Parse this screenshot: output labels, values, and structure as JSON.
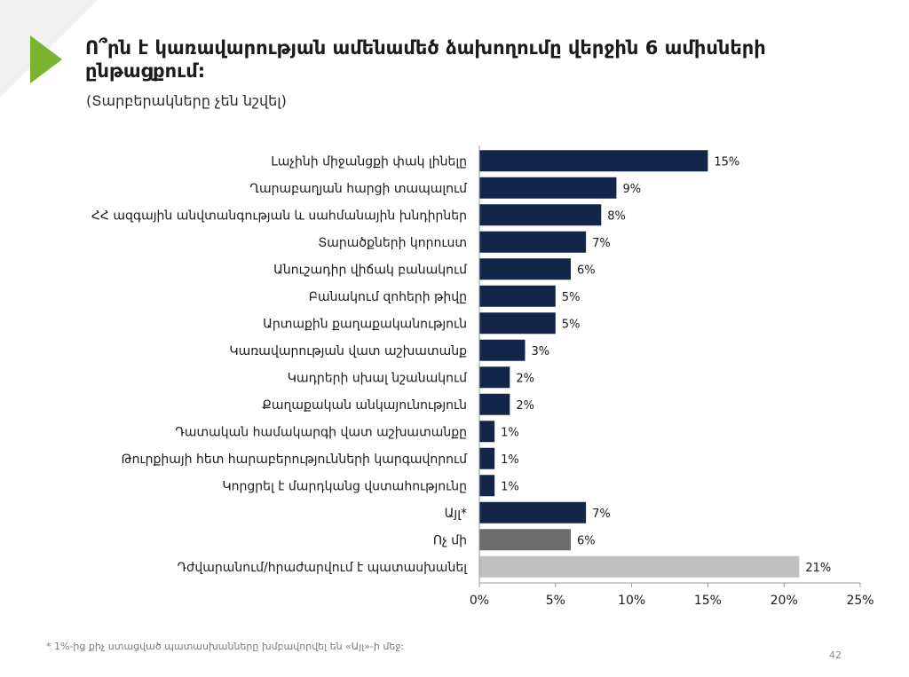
{
  "slide": {
    "title": "Ո՞րն է կառավարության ամենամեծ ձախողումը վերջին 6 ամիսների ընթացքում:",
    "subtitle": "(Տարբերակները չեն նշվել)",
    "footnote": "* 1%-ից քիչ ստացված պատասխանները խմբավորվել են «Այլ»-ի մեջ:",
    "page_number": "42",
    "colors": {
      "accent_arrow": "#7ab32e",
      "corner": "#f1f1f1"
    }
  },
  "chart_data": {
    "type": "bar",
    "orientation": "horizontal",
    "categories": [
      "Լաչինի միջանցքի փակ լինելը",
      "Ղարաբաղյան հարցի տապալում",
      "ՀՀ ազգային անվտանգության և սահմանային խնդիրներ",
      "Տարածքների կորուստ",
      "Անուշադիր վիճակ բանակում",
      "Բանակում զոհերի թիվը",
      "Արտաքին քաղաքականություն",
      "Կառավարության վատ աշխատանք",
      "Կադրերի սխալ նշանակում",
      "Քաղաքական անկայունություն",
      "Դատական համակարգի վատ աշխատանքը",
      "Թուրքիայի հետ հարաբերությունների կարգավորում",
      "Կորցրել է մարդկանց վստահությունը",
      "Այլ*",
      "Ոչ մի",
      "Դժվարանում/հրաժարվում է պատասխանել"
    ],
    "values": [
      15,
      9,
      8,
      7,
      6,
      5,
      5,
      3,
      2,
      2,
      1,
      1,
      1,
      7,
      6,
      21
    ],
    "value_labels": [
      "15%",
      "9%",
      "8%",
      "7%",
      "6%",
      "5%",
      "5%",
      "3%",
      "2%",
      "2%",
      "1%",
      "1%",
      "1%",
      "7%",
      "6%",
      "21%"
    ],
    "bar_colors": [
      "#13264a",
      "#13264a",
      "#13264a",
      "#13264a",
      "#13264a",
      "#13264a",
      "#13264a",
      "#13264a",
      "#13264a",
      "#13264a",
      "#13264a",
      "#13264a",
      "#13264a",
      "#13264a",
      "#6d6d6d",
      "#c0c0c0"
    ],
    "xlim": [
      0,
      25
    ],
    "x_ticks": [
      "0%",
      "5%",
      "10%",
      "15%",
      "20%",
      "25%"
    ],
    "grid": false
  }
}
